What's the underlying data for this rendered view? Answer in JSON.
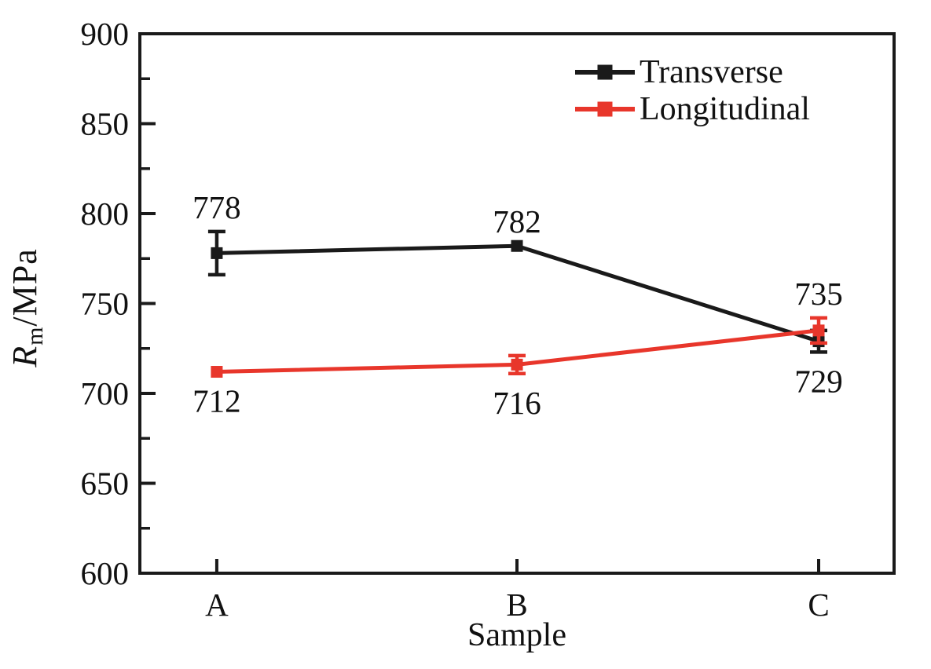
{
  "figure": {
    "background_color": "#ffffff",
    "frame_color": "#1a1a1a",
    "text_color": "#111111"
  },
  "y_axis_title": {
    "symbol": "R",
    "subscript": "m",
    "unit": "/MPa"
  },
  "chart_data": {
    "type": "line",
    "title": "",
    "xlabel": "Sample",
    "ylabel": "Rm/MPa",
    "categories": [
      "A",
      "B",
      "C"
    ],
    "series": [
      {
        "name": "Transverse",
        "color": "#1a1a1a",
        "values": [
          778,
          782,
          729
        ],
        "errors": [
          12,
          0,
          6
        ],
        "value_labels": [
          "778",
          "782",
          "729"
        ],
        "label_positions": [
          "above",
          "above",
          "below"
        ]
      },
      {
        "name": "Longitudinal",
        "color": "#e8362b",
        "values": [
          712,
          716,
          735
        ],
        "errors": [
          0,
          5,
          7
        ],
        "value_labels": [
          "712",
          "716",
          "735"
        ],
        "label_positions": [
          "below",
          "below",
          "above"
        ]
      }
    ],
    "ylim": [
      600,
      900
    ],
    "y_major_step": 50,
    "y_minor_step": 25,
    "y_tick_labels": [
      "600",
      "650",
      "700",
      "750",
      "800",
      "850",
      "900"
    ],
    "grid": false,
    "legend_position": "top-right",
    "legend_entries": [
      "Transverse",
      "Longitudinal"
    ],
    "marker": "square",
    "error_bars": true
  }
}
